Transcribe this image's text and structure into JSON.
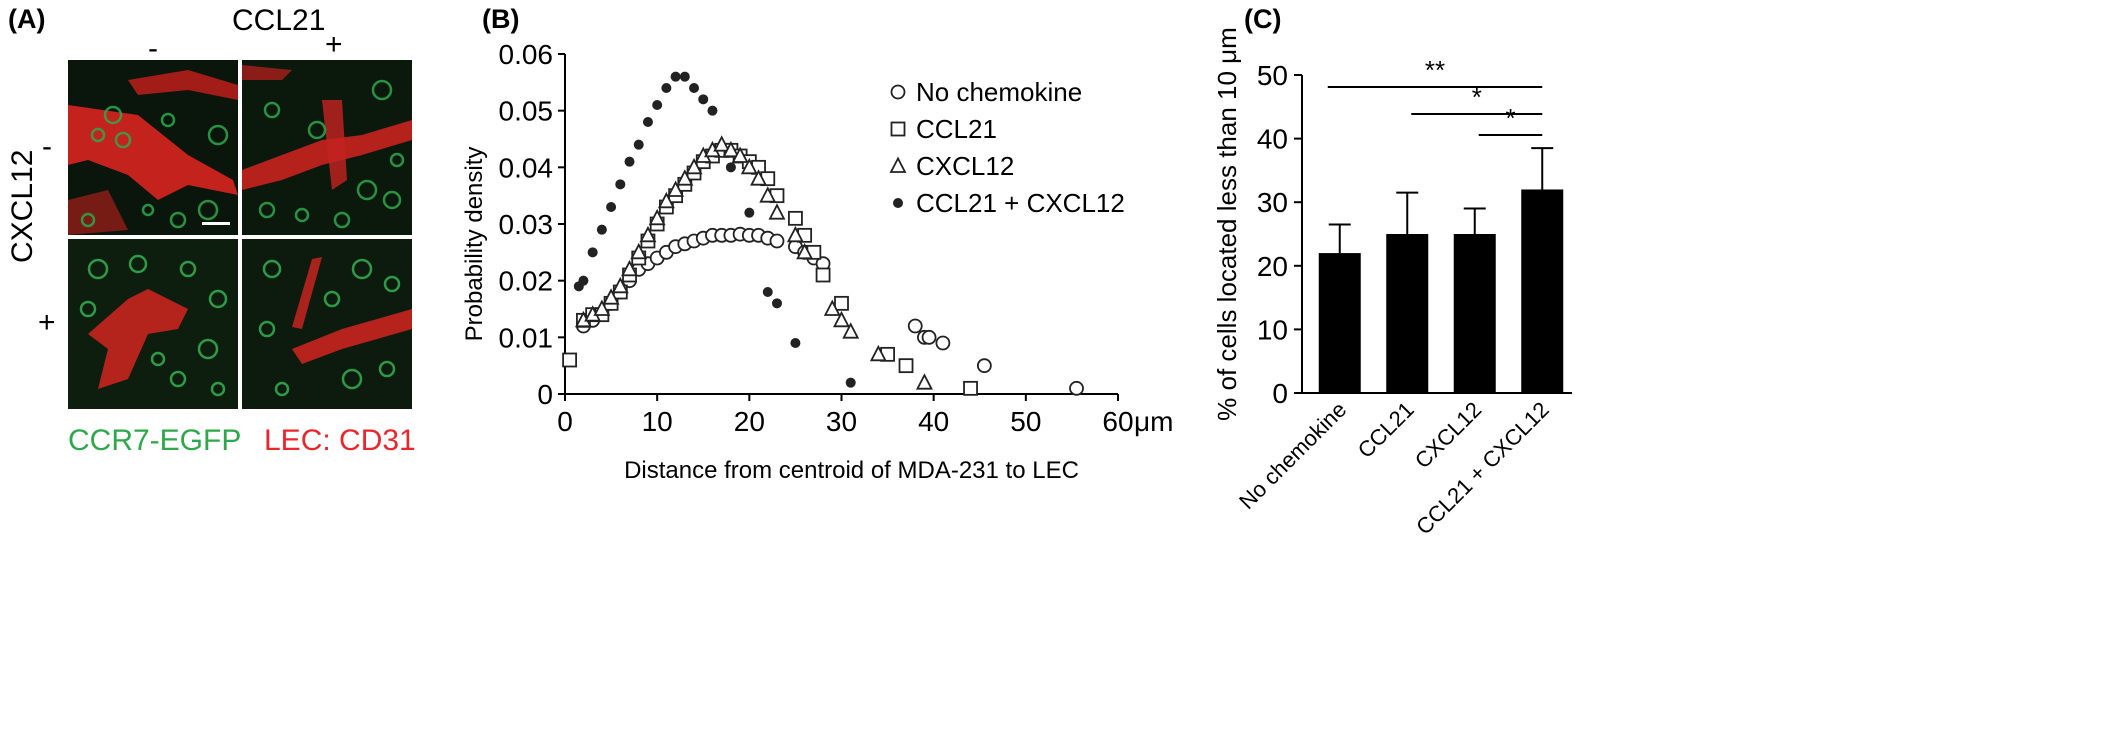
{
  "panelA": {
    "label": "(A)",
    "col_factor": "CCL21",
    "col_minus": "-",
    "col_plus": "+",
    "row_factor": "CXCL12",
    "row_minus": "-",
    "row_plus": "+",
    "legend_green": "CCR7-EGFP",
    "legend_red": "LEC: CD31",
    "colors": {
      "green": "#2ea84a",
      "red": "#e8262b"
    }
  },
  "panelB": {
    "label": "(B)"
  },
  "panelC": {
    "label": "(C)"
  },
  "chart_data": [
    {
      "type": "scatter",
      "xlabel": "Distance from centroid of MDA-231 to LEC",
      "x_unit": "μm",
      "ylabel": "Probability density",
      "xlim": [
        0,
        60
      ],
      "ylim": [
        0,
        0.06
      ],
      "x_ticks": [
        "0",
        "10",
        "20",
        "30",
        "40",
        "50",
        "60"
      ],
      "y_ticks": [
        "0",
        "0.01",
        "0.02",
        "0.03",
        "0.04",
        "0.05",
        "0.06"
      ],
      "legend_position": "top-right",
      "series": [
        {
          "name": "No chemokine",
          "marker": "open-circle",
          "points": [
            [
              2,
              0.012
            ],
            [
              3,
              0.013
            ],
            [
              4,
              0.014
            ],
            [
              5,
              0.016
            ],
            [
              6,
              0.018
            ],
            [
              7,
              0.02
            ],
            [
              8,
              0.022
            ],
            [
              9,
              0.023
            ],
            [
              10,
              0.024
            ],
            [
              11,
              0.025
            ],
            [
              12,
              0.026
            ],
            [
              13,
              0.0265
            ],
            [
              14,
              0.027
            ],
            [
              15,
              0.0275
            ],
            [
              16,
              0.028
            ],
            [
              17,
              0.028
            ],
            [
              18,
              0.028
            ],
            [
              19,
              0.0282
            ],
            [
              20,
              0.028
            ],
            [
              21,
              0.028
            ],
            [
              22,
              0.0275
            ],
            [
              23,
              0.027
            ],
            [
              25,
              0.026
            ],
            [
              26,
              0.025
            ],
            [
              27,
              0.024
            ],
            [
              28,
              0.023
            ],
            [
              38,
              0.012
            ],
            [
              39,
              0.01
            ],
            [
              39.5,
              0.01
            ],
            [
              41,
              0.009
            ],
            [
              45.5,
              0.005
            ],
            [
              55.5,
              0.001
            ]
          ]
        },
        {
          "name": "CCL21",
          "marker": "open-square",
          "points": [
            [
              0.5,
              0.006
            ],
            [
              2,
              0.013
            ],
            [
              3,
              0.014
            ],
            [
              4,
              0.014
            ],
            [
              5,
              0.016
            ],
            [
              6,
              0.018
            ],
            [
              7,
              0.021
            ],
            [
              8,
              0.024
            ],
            [
              9,
              0.027
            ],
            [
              10,
              0.03
            ],
            [
              11,
              0.033
            ],
            [
              12,
              0.035
            ],
            [
              13,
              0.037
            ],
            [
              14,
              0.039
            ],
            [
              15,
              0.041
            ],
            [
              16,
              0.042
            ],
            [
              17,
              0.043
            ],
            [
              18,
              0.043
            ],
            [
              19,
              0.042
            ],
            [
              20,
              0.041
            ],
            [
              21,
              0.04
            ],
            [
              22,
              0.038
            ],
            [
              23,
              0.035
            ],
            [
              25,
              0.031
            ],
            [
              26,
              0.028
            ],
            [
              27,
              0.025
            ],
            [
              28,
              0.021
            ],
            [
              30,
              0.016
            ],
            [
              35,
              0.007
            ],
            [
              37,
              0.005
            ],
            [
              44,
              0.001
            ]
          ]
        },
        {
          "name": "CXCL12",
          "marker": "open-triangle",
          "points": [
            [
              2,
              0.013
            ],
            [
              3,
              0.014
            ],
            [
              4,
              0.015
            ],
            [
              5,
              0.017
            ],
            [
              6,
              0.019
            ],
            [
              7,
              0.022
            ],
            [
              8,
              0.025
            ],
            [
              9,
              0.028
            ],
            [
              10,
              0.031
            ],
            [
              11,
              0.034
            ],
            [
              12,
              0.036
            ],
            [
              13,
              0.038
            ],
            [
              14,
              0.04
            ],
            [
              15,
              0.042
            ],
            [
              16,
              0.043
            ],
            [
              17,
              0.044
            ],
            [
              18,
              0.043
            ],
            [
              19,
              0.042
            ],
            [
              20,
              0.04
            ],
            [
              21,
              0.038
            ],
            [
              22,
              0.035
            ],
            [
              23,
              0.032
            ],
            [
              25,
              0.028
            ],
            [
              26,
              0.025
            ],
            [
              29,
              0.015
            ],
            [
              30,
              0.013
            ],
            [
              31,
              0.011
            ],
            [
              34,
              0.007
            ],
            [
              39,
              0.002
            ]
          ]
        },
        {
          "name": "CCL21 + CXCL12",
          "marker": "filled-circle",
          "points": [
            [
              1.5,
              0.019
            ],
            [
              2,
              0.02
            ],
            [
              3,
              0.025
            ],
            [
              4,
              0.029
            ],
            [
              5,
              0.033
            ],
            [
              6,
              0.037
            ],
            [
              7,
              0.041
            ],
            [
              8,
              0.044
            ],
            [
              9,
              0.048
            ],
            [
              10,
              0.051
            ],
            [
              11,
              0.054
            ],
            [
              12,
              0.056
            ],
            [
              13,
              0.056
            ],
            [
              14,
              0.054
            ],
            [
              15,
              0.052
            ],
            [
              16,
              0.05
            ],
            [
              18,
              0.04
            ],
            [
              20,
              0.032
            ],
            [
              22,
              0.018
            ],
            [
              23,
              0.016
            ],
            [
              25,
              0.009
            ],
            [
              31,
              0.002
            ]
          ]
        }
      ]
    },
    {
      "type": "bar",
      "ylabel": "% of cells located less than 10 μm",
      "ylim": [
        0,
        50
      ],
      "y_ticks": [
        "0",
        "10",
        "20",
        "30",
        "40",
        "50"
      ],
      "categories": [
        "No chemokine",
        "CCL21",
        "CXCL12",
        "CCL21 + CXCL12"
      ],
      "values": [
        22,
        25,
        25,
        32
      ],
      "error": [
        4.5,
        6.5,
        4,
        6.5
      ],
      "significance": [
        {
          "from": 0,
          "to": 3,
          "label": "**"
        },
        {
          "from": 1,
          "to": 3,
          "label": "*"
        },
        {
          "from": 2,
          "to": 3,
          "label": "*"
        }
      ],
      "bar_color": "#000000"
    }
  ]
}
